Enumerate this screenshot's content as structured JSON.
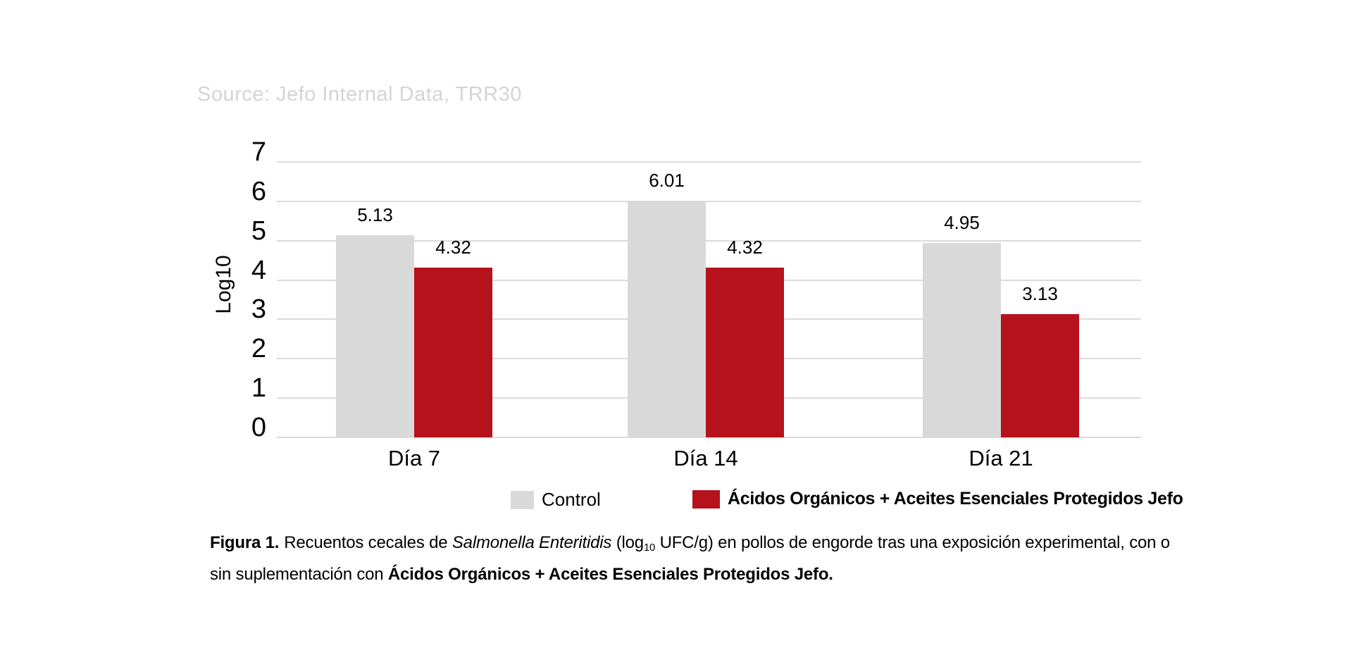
{
  "source_note": "Source: Jefo Internal Data, TRR30",
  "colors": {
    "control_gray": "#d9d9d9",
    "treatment_red": "#b5121b",
    "gridline": "#dbdbdb",
    "source_text": "#d4d4d4",
    "text": "#000000"
  },
  "chart_data": {
    "type": "bar",
    "ylabel": "Log10",
    "ylim": [
      0,
      7
    ],
    "yticks": [
      0,
      1,
      2,
      3,
      4,
      5,
      6,
      7
    ],
    "grid": true,
    "legend_position": "bottom",
    "value_labels": true,
    "categories": [
      "Día 7",
      "Día 14",
      "Día 21"
    ],
    "series": [
      {
        "name": "Control",
        "color": "#d9d9d9",
        "values": [
          5.13,
          6.01,
          4.95
        ]
      },
      {
        "name": "Ácidos Orgánicos + Aceites Esenciales Protegidos Jefo",
        "color": "#b5121b",
        "values": [
          4.32,
          4.32,
          3.13
        ]
      }
    ]
  },
  "caption": {
    "figure_label": "Figura 1.",
    "line1_text1": "Recuentos cecales de ",
    "line1_italic": "Salmonella Enteritidis",
    "line1_text2": " (log",
    "line1_sub": "10",
    "line1_text3": " UFC/g) en pollos de engorde tras una exposición experimental, con o",
    "line2_text1": "sin suplementación con ",
    "line2_bold": "Ácidos Orgánicos + Aceites Esenciales Protegidos Jefo."
  }
}
